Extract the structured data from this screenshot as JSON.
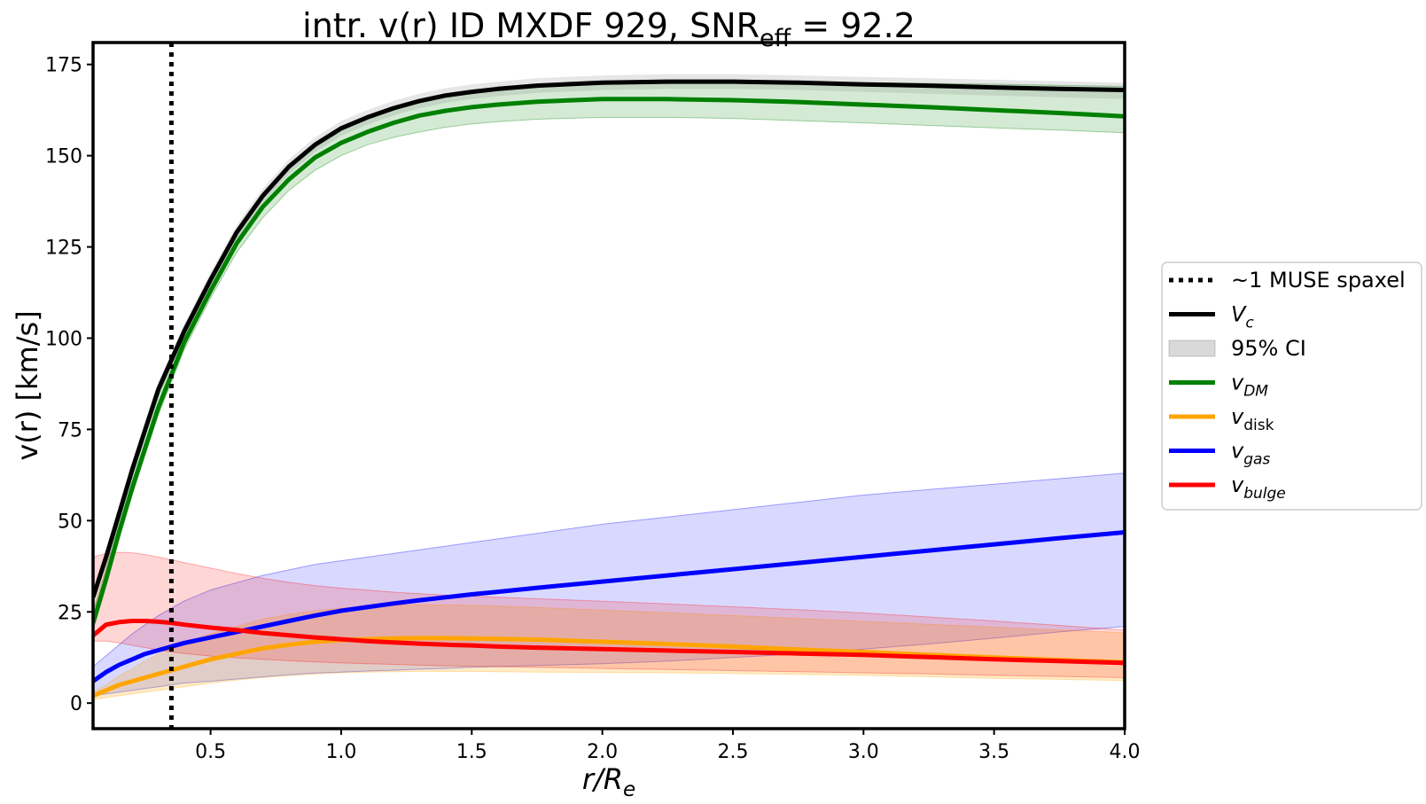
{
  "chart_data": {
    "type": "line",
    "title": {
      "prefix": "intr. v(r) ID MXDF 929, SNR",
      "subscript": "eff",
      "suffix": " = 92.2"
    },
    "xlabel": {
      "main": "r/R",
      "subscript": "e"
    },
    "ylabel": "v(r) [km/s]",
    "xlim": [
      0.05,
      4.0
    ],
    "ylim": [
      -7,
      181
    ],
    "xticks": [
      0.5,
      1.0,
      1.5,
      2.0,
      2.5,
      3.0,
      3.5,
      4.0
    ],
    "xtick_labels": [
      "0.5",
      "1.0",
      "1.5",
      "2.0",
      "2.5",
      "3.0",
      "3.5",
      "4.0"
    ],
    "yticks": [
      0,
      25,
      50,
      75,
      100,
      125,
      150,
      175
    ],
    "ytick_labels": [
      "0",
      "25",
      "50",
      "75",
      "100",
      "125",
      "150",
      "175"
    ],
    "grid": false,
    "legend_position": "outside-right",
    "vline": {
      "x": 0.35,
      "style": "dotted",
      "color": "#000000",
      "label": "~1 MUSE spaxel"
    },
    "x": [
      0.05,
      0.1,
      0.15,
      0.2,
      0.25,
      0.3,
      0.35,
      0.4,
      0.5,
      0.6,
      0.7,
      0.8,
      0.9,
      1.0,
      1.1,
      1.2,
      1.3,
      1.4,
      1.5,
      1.6,
      1.75,
      2.0,
      2.25,
      2.5,
      2.75,
      3.0,
      3.25,
      3.5,
      3.75,
      4.0
    ],
    "series": [
      {
        "name": "V_c",
        "label_main": "V",
        "label_sub": "c",
        "color": "#000000",
        "width": 5,
        "values": [
          29,
          40,
          52,
          64,
          75,
          86,
          94,
          102,
          116,
          129,
          139,
          147,
          153,
          157.5,
          160.5,
          163,
          165,
          166.5,
          167.5,
          168.3,
          169.2,
          170,
          170.3,
          170.3,
          170,
          169.5,
          169.2,
          168.7,
          168.3,
          168
        ]
      },
      {
        "name": "v_DM",
        "label_main": "v",
        "label_sub": "DM",
        "color": "#008000",
        "width": 5,
        "band": {
          "color": "#008000",
          "opacity": 0.17
        },
        "values": [
          22,
          34,
          47,
          59,
          70,
          81,
          90,
          99,
          113,
          126,
          136,
          143.5,
          149.5,
          153.5,
          156.5,
          159,
          161,
          162.3,
          163.3,
          164,
          164.8,
          165.5,
          165.5,
          165.2,
          164.7,
          164,
          163.3,
          162.5,
          161.7,
          160.8
        ],
        "lower": [
          20,
          32,
          45,
          57,
          68,
          79,
          88,
          97,
          111,
          123.5,
          133,
          140.5,
          146,
          150,
          153,
          155,
          156.5,
          157.8,
          158.7,
          159.3,
          160,
          160.5,
          160.5,
          160.2,
          159.6,
          159,
          158.3,
          157.6,
          157,
          156.3
        ],
        "upper": [
          25,
          37,
          50,
          62,
          73.5,
          84,
          93,
          102,
          116,
          129,
          139,
          147,
          153,
          157,
          160,
          162.5,
          164.5,
          166,
          167.2,
          168,
          169,
          170,
          170.5,
          170.5,
          170.2,
          170,
          169.8,
          169.6,
          169.3,
          169
        ]
      },
      {
        "name": "v_gas",
        "label_main": "v",
        "label_sub": "gas",
        "color": "#0000ff",
        "width": 5,
        "band": {
          "color": "#0000ff",
          "opacity": 0.15
        },
        "values": [
          6,
          8.5,
          10.5,
          12,
          13.5,
          14.5,
          15.5,
          16.5,
          18,
          19.5,
          21,
          22.5,
          24,
          25.3,
          26.3,
          27.3,
          28.2,
          29,
          29.8,
          30.5,
          31.6,
          33.3,
          35,
          36.7,
          38.4,
          40.1,
          41.8,
          43.5,
          45.2,
          46.8
        ],
        "lower": [
          2,
          2.5,
          3,
          3.5,
          4,
          4.5,
          5,
          5.5,
          6,
          6.6,
          7.2,
          7.8,
          8.2,
          8.5,
          8.8,
          9,
          9.3,
          9.5,
          9.8,
          10,
          10.3,
          10.8,
          11.5,
          12.5,
          13.5,
          14.8,
          16.2,
          17.8,
          19.5,
          21
        ],
        "upper": [
          10,
          13,
          16,
          19,
          21.5,
          24,
          26,
          28,
          31,
          33,
          35,
          36.5,
          38,
          39,
          40,
          41,
          42,
          43,
          44,
          45,
          46.5,
          49,
          51,
          53,
          55,
          57,
          58.5,
          60,
          61.5,
          63
        ]
      },
      {
        "name": "v_bulge",
        "label_main": "v",
        "label_sub": "bulge",
        "color": "#ff0000",
        "width": 5,
        "band": {
          "color": "#ff0000",
          "opacity": 0.16
        },
        "values": [
          18.5,
          21.5,
          22.2,
          22.5,
          22.5,
          22.3,
          22,
          21.5,
          20.7,
          20,
          19.2,
          18.6,
          18,
          17.5,
          17,
          16.6,
          16.3,
          16,
          15.8,
          15.5,
          15.2,
          14.8,
          14.4,
          14,
          13.6,
          13.2,
          12.6,
          12,
          11.5,
          11
        ]
      },
      {
        "name": "v_disk",
        "label_main": "v",
        "label_sub": "disk",
        "color": "#ffa500",
        "width": 5,
        "upright_sub": true,
        "values": [
          2,
          3.5,
          5,
          6,
          7,
          8,
          9,
          10,
          12,
          13.5,
          15,
          16,
          16.8,
          17.3,
          17.5,
          17.7,
          17.8,
          17.8,
          17.7,
          17.6,
          17.4,
          16.8,
          16.2,
          15.5,
          14.7,
          14,
          13.2,
          12.5,
          11.8,
          11.2
        ]
      }
    ],
    "extra_bands": [
      {
        "name": "v_disk 95% CI",
        "color": "#ffa500",
        "opacity": 0.22,
        "lower": [
          1,
          1.5,
          2,
          2.5,
          3,
          3.5,
          4,
          4.5,
          5.5,
          6.3,
          7,
          7.5,
          8,
          8.3,
          8.5,
          8.6,
          8.7,
          8.7,
          8.7,
          8.6,
          8.5,
          8.4,
          8.3,
          8.1,
          7.9,
          7.6,
          7.2,
          6.8,
          6.5,
          6.2
        ],
        "upper": [
          3,
          5,
          7.5,
          9.5,
          11.5,
          13.5,
          15,
          16.5,
          19,
          21,
          23,
          24.3,
          25.3,
          26,
          26.5,
          26.8,
          26.9,
          26.9,
          26.8,
          26.6,
          26.2,
          25.5,
          24.8,
          24,
          23.2,
          22.4,
          21.6,
          20.8,
          20,
          19.3
        ]
      },
      {
        "name": "v_bulge 95% CI",
        "color": "#ff0000",
        "opacity": 0.16,
        "lower": [
          17,
          17,
          16.5,
          15.8,
          15.2,
          14.6,
          14,
          13.6,
          12.9,
          12.4,
          12,
          11.6,
          11.3,
          11,
          10.8,
          10.6,
          10.4,
          10.2,
          10.1,
          10,
          9.8,
          9.5,
          9.2,
          8.9,
          8.6,
          8.3,
          8,
          7.6,
          7.3,
          7
        ],
        "upper": [
          40,
          41,
          41.3,
          41.2,
          40.7,
          40,
          39.3,
          38.5,
          37,
          35.5,
          34.2,
          33.1,
          32.2,
          31.5,
          31,
          30.4,
          30,
          29.6,
          29.3,
          29,
          28.6,
          27.9,
          27.2,
          26.4,
          25.6,
          24.7,
          23.6,
          22.5,
          21.3,
          20
        ]
      }
    ],
    "legend": [
      {
        "key": "spaxel",
        "kind": "dotted",
        "color": "#000000",
        "main": "~1 MUSE spaxel",
        "sub": "",
        "italic": false
      },
      {
        "key": "vc",
        "kind": "line",
        "color": "#000000",
        "main": "V",
        "sub": "c",
        "italic": true
      },
      {
        "key": "ci",
        "kind": "patch",
        "color": "#808080",
        "main": "95% CI",
        "sub": "",
        "italic": false
      },
      {
        "key": "vdm",
        "kind": "line",
        "color": "#008000",
        "main": "v",
        "sub": "DM",
        "italic": true
      },
      {
        "key": "vdisk",
        "kind": "line",
        "color": "#ffa500",
        "main": "v",
        "sub": "disk",
        "italic": true,
        "upright_sub": true
      },
      {
        "key": "vgas",
        "kind": "line",
        "color": "#0000ff",
        "main": "v",
        "sub": "gas",
        "italic": true
      },
      {
        "key": "vbulge",
        "kind": "line",
        "color": "#ff0000",
        "main": "v",
        "sub": "bulge",
        "italic": true
      }
    ],
    "ci_band": {
      "color": "#808080",
      "opacity": 0.2,
      "lower": [
        27,
        38,
        50,
        62,
        73,
        84,
        92,
        100,
        114,
        127,
        137,
        145,
        151,
        155.5,
        158.5,
        161,
        163,
        164.5,
        165.5,
        166.3,
        167.2,
        168,
        168.3,
        168.3,
        168,
        167.5,
        167,
        166.5,
        166,
        165.5
      ],
      "upper": [
        31,
        42,
        54,
        66,
        77,
        88,
        96,
        104,
        118,
        131,
        141,
        149,
        155,
        159.5,
        162.5,
        165,
        167,
        168.5,
        169.5,
        170.3,
        171.2,
        172,
        172.3,
        172.3,
        172,
        171.6,
        171.2,
        170.8,
        170.4,
        170
      ]
    }
  }
}
